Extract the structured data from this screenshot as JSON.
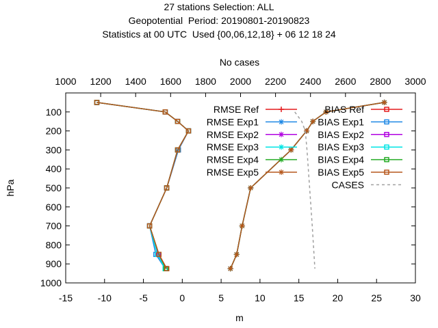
{
  "title_lines": [
    "27 stations Selection: ALL",
    "Geopotential  Period: 20190801-20190823",
    "Statistics at 00 UTC  Used {00,06,12,18} + 06 12 18 24"
  ],
  "chart_data": {
    "type": "line",
    "title": "27 stations Selection: ALL / Geopotential  Period: 20190801-20190823 / Statistics at 00 UTC  Used {00,06,12,18} + 06 12 18 24",
    "xlabel": "m",
    "ylabel": "hPa",
    "x2label": "No cases",
    "xlim": [
      -15,
      30
    ],
    "ylim": [
      1000,
      0
    ],
    "x2lim": [
      1000,
      3000
    ],
    "x_ticks": [
      -15,
      -10,
      -5,
      0,
      5,
      10,
      15,
      20,
      25,
      30
    ],
    "y_ticks": [
      100,
      200,
      300,
      400,
      500,
      600,
      700,
      800,
      900,
      1000
    ],
    "x2_ticks": [
      1000,
      1200,
      1400,
      1600,
      1800,
      2000,
      2200,
      2400,
      2600,
      2800,
      3000
    ],
    "grid": false,
    "legend_position": "top-right",
    "levels": [
      50,
      100,
      150,
      200,
      300,
      500,
      700,
      850,
      925
    ],
    "series": [
      {
        "name": "RMSE Ref",
        "color": "#e41a1c",
        "marker": "plus",
        "axis": "x",
        "values": [
          26.0,
          18.5,
          16.8,
          16.0,
          14.0,
          8.8,
          7.7,
          7.0,
          6.2
        ]
      },
      {
        "name": "RMSE Exp1",
        "color": "#1e88e5",
        "marker": "star",
        "axis": "x",
        "values": [
          26.0,
          18.5,
          16.8,
          16.0,
          14.0,
          8.8,
          7.7,
          7.0,
          6.2
        ]
      },
      {
        "name": "RMSE Exp2",
        "color": "#b000e0",
        "marker": "star",
        "axis": "x",
        "values": [
          26.0,
          18.5,
          16.8,
          16.0,
          14.0,
          8.8,
          7.7,
          7.0,
          6.2
        ]
      },
      {
        "name": "RMSE Exp3",
        "color": "#00e5e5",
        "marker": "star",
        "axis": "x",
        "values": [
          26.0,
          18.5,
          16.8,
          16.0,
          14.0,
          8.8,
          7.7,
          7.0,
          6.2
        ]
      },
      {
        "name": "RMSE Exp4",
        "color": "#22aa22",
        "marker": "star",
        "axis": "x",
        "values": [
          26.0,
          18.5,
          16.8,
          16.0,
          14.0,
          8.8,
          7.7,
          7.0,
          6.2
        ]
      },
      {
        "name": "RMSE Exp5",
        "color": "#b5571b",
        "marker": "star",
        "axis": "x",
        "values": [
          26.0,
          18.5,
          16.8,
          16.0,
          14.0,
          8.8,
          7.7,
          7.0,
          6.2
        ]
      },
      {
        "name": "BIAS Ref",
        "color": "#e41a1c",
        "marker": "square",
        "axis": "x",
        "values": [
          -11.0,
          -2.2,
          -0.6,
          0.8,
          -0.5,
          -2.0,
          -4.2,
          -3.0,
          -2.0
        ]
      },
      {
        "name": "BIAS Exp1",
        "color": "#1e88e5",
        "marker": "square",
        "axis": "x",
        "values": [
          -11.0,
          -2.2,
          -0.6,
          0.8,
          -0.5,
          -2.0,
          -4.2,
          -3.4,
          -2.2
        ]
      },
      {
        "name": "BIAS Exp2",
        "color": "#b000e0",
        "marker": "square",
        "axis": "x",
        "values": [
          -11.0,
          -2.2,
          -0.6,
          0.8,
          -0.6,
          -2.0,
          -4.2,
          -3.1,
          -2.1
        ]
      },
      {
        "name": "BIAS Exp3",
        "color": "#00e5e5",
        "marker": "square",
        "axis": "x",
        "values": [
          -11.0,
          -2.2,
          -0.6,
          0.8,
          -0.6,
          -2.0,
          -4.2,
          -3.2,
          -2.2
        ]
      },
      {
        "name": "BIAS Exp4",
        "color": "#22aa22",
        "marker": "square",
        "axis": "x",
        "values": [
          -11.0,
          -2.2,
          -0.6,
          0.8,
          -0.6,
          -2.0,
          -4.2,
          -3.0,
          -2.1
        ]
      },
      {
        "name": "BIAS Exp5",
        "color": "#b5571b",
        "marker": "square",
        "axis": "x",
        "values": [
          -11.0,
          -2.2,
          -0.6,
          0.8,
          -0.6,
          -2.0,
          -4.2,
          -3.0,
          -2.0
        ]
      },
      {
        "name": "CASES",
        "color": "#a0a0a0",
        "marker": "none",
        "dashed": true,
        "axis": "x2",
        "levels": [
          100,
          150,
          200,
          300,
          500,
          700,
          850,
          925
        ],
        "values": [
          2310,
          2350,
          2370,
          2380,
          2395,
          2410,
          2420,
          2425
        ]
      }
    ]
  }
}
